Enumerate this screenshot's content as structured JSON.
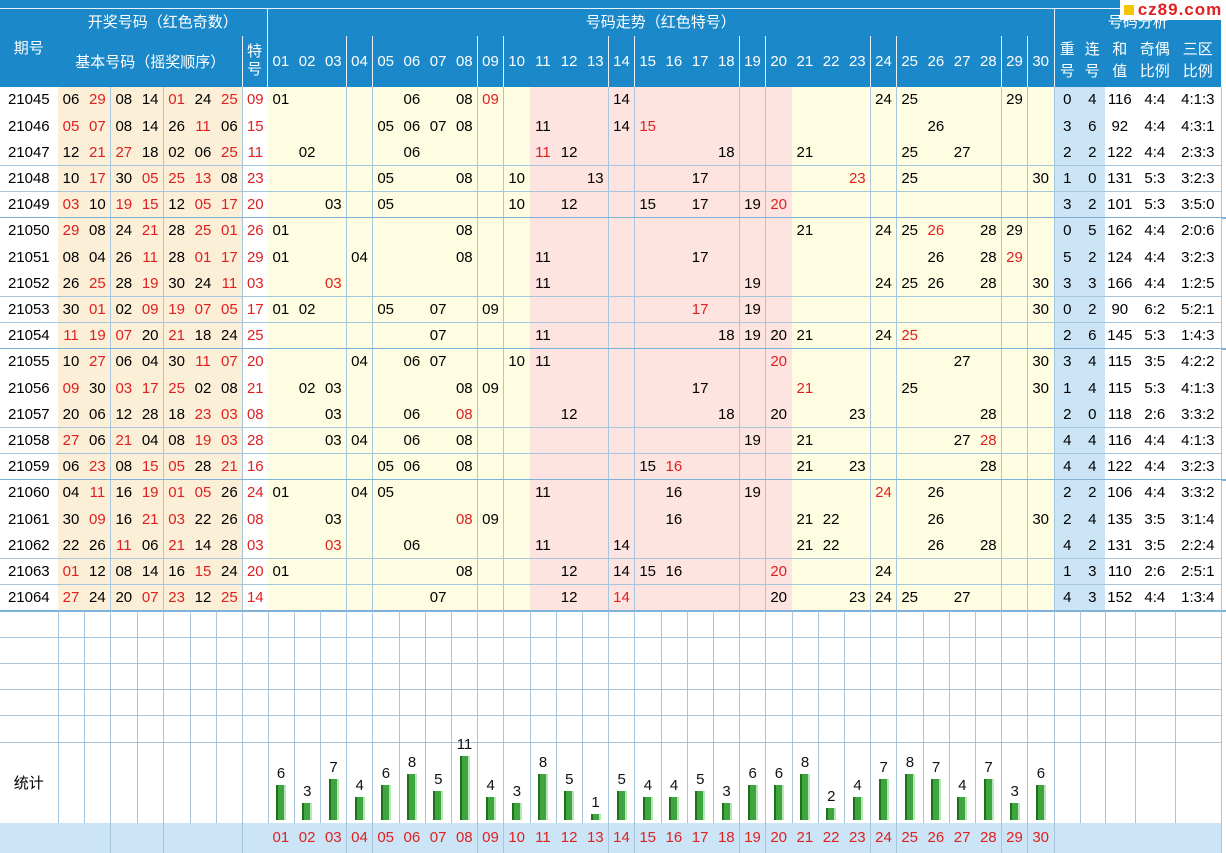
{
  "header": {
    "qihao": "期号",
    "kaijiang": "开奖号码（红色奇数）",
    "jiben": "基本号码（摇奖顺序）",
    "te": "特号",
    "zoushi": "号码走势（红色特号）",
    "fenxi": "号码分析",
    "chong": "重号",
    "lian": "连号",
    "hezhi": "和值",
    "jiou": "奇偶比例",
    "sanqu": "三区比例",
    "tongji": "统计"
  },
  "logo": "cz89.com",
  "colors": {
    "header_bg": "#1a88c9",
    "basic_bg": "#fbefd8",
    "trend_bg": "#fffde1",
    "middle_zone_bg": "#fde4e0",
    "analysis_bg": "#cbe5f7",
    "bar_green": "#3fa53f",
    "red": "#e02020"
  },
  "rows": [
    {
      "issue": "21045",
      "basic": [
        "06",
        "29",
        "08",
        "14",
        "01",
        "24",
        "25"
      ],
      "te": "09",
      "chong": "0",
      "lian": "4",
      "hezhi": "116",
      "jiou": "4:4",
      "sanqu": "4:1:3"
    },
    {
      "issue": "21046",
      "basic": [
        "05",
        "07",
        "08",
        "14",
        "26",
        "11",
        "06"
      ],
      "te": "15",
      "chong": "3",
      "lian": "6",
      "hezhi": "92",
      "jiou": "4:4",
      "sanqu": "4:3:1"
    },
    {
      "issue": "21047",
      "basic": [
        "12",
        "21",
        "27",
        "18",
        "02",
        "06",
        "25"
      ],
      "te": "11",
      "chong": "2",
      "lian": "2",
      "hezhi": "122",
      "jiou": "4:4",
      "sanqu": "2:3:3"
    },
    {
      "issue": "21048",
      "basic": [
        "10",
        "17",
        "30",
        "05",
        "25",
        "13",
        "08"
      ],
      "te": "23",
      "chong": "1",
      "lian": "0",
      "hezhi": "131",
      "jiou": "5:3",
      "sanqu": "3:2:3"
    },
    {
      "issue": "21049",
      "basic": [
        "03",
        "10",
        "19",
        "15",
        "12",
        "05",
        "17"
      ],
      "te": "20",
      "chong": "3",
      "lian": "2",
      "hezhi": "101",
      "jiou": "5:3",
      "sanqu": "3:5:0"
    },
    {
      "issue": "21050",
      "basic": [
        "29",
        "08",
        "24",
        "21",
        "28",
        "25",
        "01"
      ],
      "te": "26",
      "chong": "0",
      "lian": "5",
      "hezhi": "162",
      "jiou": "4:4",
      "sanqu": "2:0:6"
    },
    {
      "issue": "21051",
      "basic": [
        "08",
        "04",
        "26",
        "11",
        "28",
        "01",
        "17"
      ],
      "te": "29",
      "chong": "5",
      "lian": "2",
      "hezhi": "124",
      "jiou": "4:4",
      "sanqu": "3:2:3"
    },
    {
      "issue": "21052",
      "basic": [
        "26",
        "25",
        "28",
        "19",
        "30",
        "24",
        "11"
      ],
      "te": "03",
      "chong": "3",
      "lian": "3",
      "hezhi": "166",
      "jiou": "4:4",
      "sanqu": "1:2:5"
    },
    {
      "issue": "21053",
      "basic": [
        "30",
        "01",
        "02",
        "09",
        "19",
        "07",
        "05"
      ],
      "te": "17",
      "chong": "0",
      "lian": "2",
      "hezhi": "90",
      "jiou": "6:2",
      "sanqu": "5:2:1"
    },
    {
      "issue": "21054",
      "basic": [
        "11",
        "19",
        "07",
        "20",
        "21",
        "18",
        "24"
      ],
      "te": "25",
      "chong": "2",
      "lian": "6",
      "hezhi": "145",
      "jiou": "5:3",
      "sanqu": "1:4:3"
    },
    {
      "issue": "21055",
      "basic": [
        "10",
        "27",
        "06",
        "04",
        "30",
        "11",
        "07"
      ],
      "te": "20",
      "chong": "3",
      "lian": "4",
      "hezhi": "115",
      "jiou": "3:5",
      "sanqu": "4:2:2"
    },
    {
      "issue": "21056",
      "basic": [
        "09",
        "30",
        "03",
        "17",
        "25",
        "02",
        "08"
      ],
      "te": "21",
      "chong": "1",
      "lian": "4",
      "hezhi": "115",
      "jiou": "5:3",
      "sanqu": "4:1:3"
    },
    {
      "issue": "21057",
      "basic": [
        "20",
        "06",
        "12",
        "28",
        "18",
        "23",
        "03"
      ],
      "te": "08",
      "chong": "2",
      "lian": "0",
      "hezhi": "118",
      "jiou": "2:6",
      "sanqu": "3:3:2"
    },
    {
      "issue": "21058",
      "basic": [
        "27",
        "06",
        "21",
        "04",
        "08",
        "19",
        "03"
      ],
      "te": "28",
      "chong": "4",
      "lian": "4",
      "hezhi": "116",
      "jiou": "4:4",
      "sanqu": "4:1:3"
    },
    {
      "issue": "21059",
      "basic": [
        "06",
        "23",
        "08",
        "15",
        "05",
        "28",
        "21"
      ],
      "te": "16",
      "chong": "4",
      "lian": "4",
      "hezhi": "122",
      "jiou": "4:4",
      "sanqu": "3:2:3"
    },
    {
      "issue": "21060",
      "basic": [
        "04",
        "11",
        "16",
        "19",
        "01",
        "05",
        "26"
      ],
      "te": "24",
      "chong": "2",
      "lian": "2",
      "hezhi": "106",
      "jiou": "4:4",
      "sanqu": "3:3:2"
    },
    {
      "issue": "21061",
      "basic": [
        "30",
        "09",
        "16",
        "21",
        "03",
        "22",
        "26"
      ],
      "te": "08",
      "chong": "2",
      "lian": "4",
      "hezhi": "135",
      "jiou": "3:5",
      "sanqu": "3:1:4"
    },
    {
      "issue": "21062",
      "basic": [
        "22",
        "26",
        "11",
        "06",
        "21",
        "14",
        "28"
      ],
      "te": "03",
      "chong": "4",
      "lian": "2",
      "hezhi": "131",
      "jiou": "3:5",
      "sanqu": "2:2:4"
    },
    {
      "issue": "21063",
      "basic": [
        "01",
        "12",
        "08",
        "14",
        "16",
        "15",
        "24"
      ],
      "te": "20",
      "chong": "1",
      "lian": "3",
      "hezhi": "110",
      "jiou": "2:6",
      "sanqu": "2:5:1"
    },
    {
      "issue": "21064",
      "basic": [
        "27",
        "24",
        "20",
        "07",
        "23",
        "12",
        "25"
      ],
      "te": "14",
      "chong": "4",
      "lian": "3",
      "hezhi": "152",
      "jiou": "4:4",
      "sanqu": "1:3:4"
    }
  ],
  "chart_data": {
    "type": "bar",
    "categories": [
      "01",
      "02",
      "03",
      "04",
      "05",
      "06",
      "07",
      "08",
      "09",
      "10",
      "11",
      "12",
      "13",
      "14",
      "15",
      "16",
      "17",
      "18",
      "19",
      "20",
      "21",
      "22",
      "23",
      "24",
      "25",
      "26",
      "27",
      "28",
      "29",
      "30"
    ],
    "values": [
      6,
      3,
      7,
      4,
      6,
      8,
      5,
      11,
      4,
      3,
      8,
      5,
      1,
      5,
      4,
      4,
      5,
      3,
      6,
      6,
      8,
      2,
      4,
      7,
      8,
      7,
      4,
      7,
      3,
      6
    ],
    "title": "统计"
  }
}
